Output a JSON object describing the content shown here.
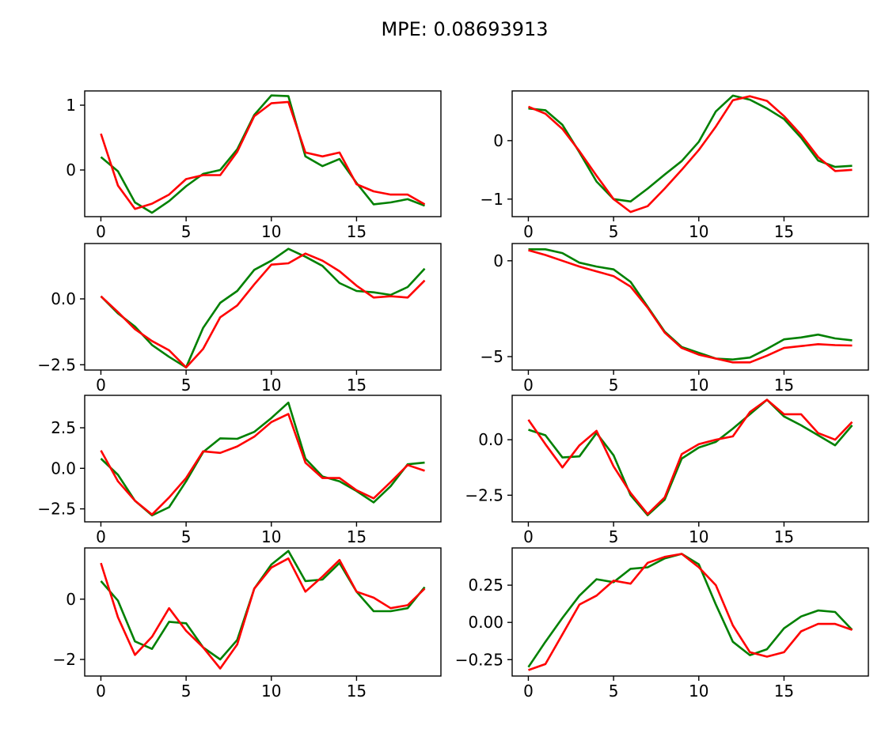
{
  "figure": {
    "suptitle": "MPE: 0.08693913",
    "colors": {
      "truth": "#008000",
      "prediction": "#ff0000"
    }
  },
  "chart_data": [
    {
      "type": "line",
      "x": [
        0,
        1,
        2,
        3,
        4,
        5,
        6,
        7,
        8,
        9,
        10,
        11,
        12,
        13,
        14,
        15,
        16,
        17,
        18,
        19
      ],
      "xlim": [
        -0.95,
        19.95
      ],
      "ylim": [
        -0.72,
        1.22
      ],
      "xticks": [
        0,
        5,
        10,
        15
      ],
      "yticks": [
        0,
        1
      ],
      "ytick_labels": [
        "0",
        "1"
      ],
      "series": [
        {
          "color": "green",
          "values": [
            0.2,
            -0.02,
            -0.5,
            -0.66,
            -0.48,
            -0.25,
            -0.06,
            0.0,
            0.32,
            0.85,
            1.15,
            1.14,
            0.21,
            0.06,
            0.17,
            -0.2,
            -0.53,
            -0.5,
            -0.45,
            -0.55
          ]
        },
        {
          "color": "red",
          "values": [
            0.56,
            -0.24,
            -0.6,
            -0.52,
            -0.38,
            -0.14,
            -0.08,
            -0.08,
            0.28,
            0.83,
            1.03,
            1.05,
            0.27,
            0.21,
            0.27,
            -0.22,
            -0.33,
            -0.38,
            -0.38,
            -0.53
          ]
        }
      ]
    },
    {
      "type": "line",
      "x": [
        0,
        1,
        2,
        3,
        4,
        5,
        6,
        7,
        8,
        9,
        10,
        11,
        12,
        13,
        14,
        15,
        16,
        17,
        18,
        19
      ],
      "xlim": [
        -0.95,
        19.95
      ],
      "ylim": [
        -1.3,
        0.85
      ],
      "xticks": [
        0,
        5,
        10,
        15
      ],
      "yticks": [
        -1,
        0
      ],
      "ytick_labels": [
        "−1",
        "0"
      ],
      "series": [
        {
          "color": "green",
          "values": [
            0.55,
            0.52,
            0.27,
            -0.2,
            -0.7,
            -1.0,
            -1.04,
            -0.82,
            -0.58,
            -0.35,
            -0.02,
            0.5,
            0.77,
            0.7,
            0.55,
            0.37,
            0.05,
            -0.34,
            -0.45,
            -0.43
          ]
        },
        {
          "color": "red",
          "values": [
            0.58,
            0.46,
            0.2,
            -0.18,
            -0.6,
            -1.0,
            -1.22,
            -1.12,
            -0.82,
            -0.5,
            -0.16,
            0.24,
            0.69,
            0.76,
            0.68,
            0.42,
            0.1,
            -0.28,
            -0.52,
            -0.5
          ]
        }
      ]
    },
    {
      "type": "line",
      "x": [
        0,
        1,
        2,
        3,
        4,
        5,
        6,
        7,
        8,
        9,
        10,
        11,
        12,
        13,
        14,
        15,
        16,
        17,
        18,
        19
      ],
      "xlim": [
        -0.95,
        19.95
      ],
      "ylim": [
        -2.7,
        2.1
      ],
      "xticks": [
        0,
        5,
        10,
        15
      ],
      "yticks": [
        -2.5,
        0.0
      ],
      "ytick_labels": [
        "−2.5",
        "0.0"
      ],
      "series": [
        {
          "color": "green",
          "values": [
            0.1,
            -0.55,
            -1.05,
            -1.75,
            -2.2,
            -2.6,
            -1.1,
            -0.15,
            0.3,
            1.1,
            1.45,
            1.9,
            1.6,
            1.25,
            0.6,
            0.3,
            0.25,
            0.15,
            0.45,
            1.15
          ]
        },
        {
          "color": "red",
          "values": [
            0.1,
            -0.5,
            -1.15,
            -1.6,
            -1.95,
            -2.6,
            -1.9,
            -0.7,
            -0.25,
            0.55,
            1.3,
            1.35,
            1.72,
            1.45,
            1.05,
            0.5,
            0.05,
            0.1,
            0.05,
            0.7
          ]
        }
      ]
    },
    {
      "type": "line",
      "x": [
        0,
        1,
        2,
        3,
        4,
        5,
        6,
        7,
        8,
        9,
        10,
        11,
        12,
        13,
        14,
        15,
        16,
        17,
        18,
        19
      ],
      "xlim": [
        -0.95,
        19.95
      ],
      "ylim": [
        -5.7,
        0.9
      ],
      "xticks": [
        0,
        5,
        10,
        15
      ],
      "yticks": [
        -5,
        0
      ],
      "ytick_labels": [
        "−5",
        "0"
      ],
      "series": [
        {
          "color": "green",
          "values": [
            0.6,
            0.6,
            0.4,
            -0.1,
            -0.3,
            -0.45,
            -1.1,
            -2.4,
            -3.7,
            -4.5,
            -4.8,
            -5.1,
            -5.15,
            -5.05,
            -4.6,
            -4.1,
            -4.0,
            -3.85,
            -4.05,
            -4.15
          ]
        },
        {
          "color": "red",
          "values": [
            0.55,
            0.3,
            0.0,
            -0.3,
            -0.55,
            -0.8,
            -1.35,
            -2.45,
            -3.75,
            -4.55,
            -4.9,
            -5.1,
            -5.3,
            -5.3,
            -4.95,
            -4.55,
            -4.45,
            -4.35,
            -4.4,
            -4.42
          ]
        }
      ]
    },
    {
      "type": "line",
      "x": [
        0,
        1,
        2,
        3,
        4,
        5,
        6,
        7,
        8,
        9,
        10,
        11,
        12,
        13,
        14,
        15,
        16,
        17,
        18,
        19
      ],
      "xlim": [
        -0.95,
        19.95
      ],
      "ylim": [
        -3.3,
        4.5
      ],
      "xticks": [
        0,
        5,
        10,
        15
      ],
      "yticks": [
        -2.5,
        0.0,
        2.5
      ],
      "ytick_labels": [
        "−2.5",
        "0.0",
        "2.5"
      ],
      "series": [
        {
          "color": "green",
          "values": [
            0.6,
            -0.4,
            -2.0,
            -2.9,
            -2.4,
            -0.8,
            1.0,
            1.85,
            1.82,
            2.25,
            3.1,
            4.05,
            0.6,
            -0.5,
            -0.8,
            -1.4,
            -2.1,
            -1.1,
            0.25,
            0.35
          ]
        },
        {
          "color": "red",
          "values": [
            1.1,
            -0.8,
            -2.0,
            -2.85,
            -1.8,
            -0.6,
            1.05,
            0.95,
            1.35,
            1.95,
            2.85,
            3.35,
            0.35,
            -0.6,
            -0.6,
            -1.35,
            -1.85,
            -0.85,
            0.2,
            -0.15
          ]
        }
      ]
    },
    {
      "type": "line",
      "x": [
        0,
        1,
        2,
        3,
        4,
        5,
        6,
        7,
        8,
        9,
        10,
        11,
        12,
        13,
        14,
        15,
        16,
        17,
        18,
        19
      ],
      "xlim": [
        -0.95,
        19.95
      ],
      "ylim": [
        -3.7,
        2.0
      ],
      "xticks": [
        0,
        5,
        10,
        15
      ],
      "yticks": [
        -2.5,
        0.0
      ],
      "ytick_labels": [
        "−2.5",
        "0.0"
      ],
      "series": [
        {
          "color": "green",
          "values": [
            0.45,
            0.2,
            -0.8,
            -0.75,
            0.3,
            -0.7,
            -2.5,
            -3.4,
            -2.7,
            -0.85,
            -0.35,
            -0.1,
            0.5,
            1.15,
            1.8,
            1.05,
            0.65,
            0.2,
            -0.25,
            0.65
          ]
        },
        {
          "color": "red",
          "values": [
            0.9,
            -0.2,
            -1.25,
            -0.25,
            0.4,
            -1.2,
            -2.4,
            -3.35,
            -2.6,
            -0.65,
            -0.2,
            0.0,
            0.15,
            1.25,
            1.8,
            1.15,
            1.15,
            0.3,
            0.0,
            0.8
          ]
        }
      ]
    },
    {
      "type": "line",
      "x": [
        0,
        1,
        2,
        3,
        4,
        5,
        6,
        7,
        8,
        9,
        10,
        11,
        12,
        13,
        14,
        15,
        16,
        17,
        18,
        19
      ],
      "xlim": [
        -0.95,
        19.95
      ],
      "ylim": [
        -2.55,
        1.7
      ],
      "xticks": [
        0,
        5,
        10,
        15
      ],
      "yticks": [
        -2,
        0
      ],
      "ytick_labels": [
        "−2",
        "0"
      ],
      "series": [
        {
          "color": "green",
          "values": [
            0.6,
            -0.05,
            -1.4,
            -1.65,
            -0.75,
            -0.8,
            -1.6,
            -2.0,
            -1.35,
            0.35,
            1.15,
            1.6,
            0.6,
            0.65,
            1.2,
            0.25,
            -0.4,
            -0.4,
            -0.3,
            0.4
          ]
        },
        {
          "color": "red",
          "values": [
            1.2,
            -0.6,
            -1.85,
            -1.25,
            -0.3,
            -1.05,
            -1.6,
            -2.3,
            -1.5,
            0.35,
            1.05,
            1.35,
            0.25,
            0.75,
            1.3,
            0.25,
            0.05,
            -0.3,
            -0.2,
            0.35
          ]
        }
      ]
    },
    {
      "type": "line",
      "x": [
        0,
        1,
        2,
        3,
        4,
        5,
        6,
        7,
        8,
        9,
        10,
        11,
        12,
        13,
        14,
        15,
        16,
        17,
        18,
        19
      ],
      "xlim": [
        -0.95,
        19.95
      ],
      "ylim": [
        -0.36,
        0.5
      ],
      "xticks": [
        0,
        5,
        10,
        15
      ],
      "yticks": [
        -0.25,
        0.0,
        0.25
      ],
      "ytick_labels": [
        "−0.25",
        "0.00",
        "0.25"
      ],
      "series": [
        {
          "color": "green",
          "values": [
            -0.3,
            -0.13,
            0.03,
            0.18,
            0.29,
            0.27,
            0.36,
            0.37,
            0.43,
            0.46,
            0.39,
            0.12,
            -0.13,
            -0.22,
            -0.18,
            -0.04,
            0.04,
            0.08,
            0.07,
            -0.05
          ]
        },
        {
          "color": "red",
          "values": [
            -0.32,
            -0.28,
            -0.08,
            0.12,
            0.18,
            0.28,
            0.26,
            0.4,
            0.44,
            0.46,
            0.37,
            0.25,
            -0.02,
            -0.2,
            -0.23,
            -0.2,
            -0.06,
            -0.01,
            -0.01,
            -0.05
          ]
        }
      ]
    }
  ]
}
